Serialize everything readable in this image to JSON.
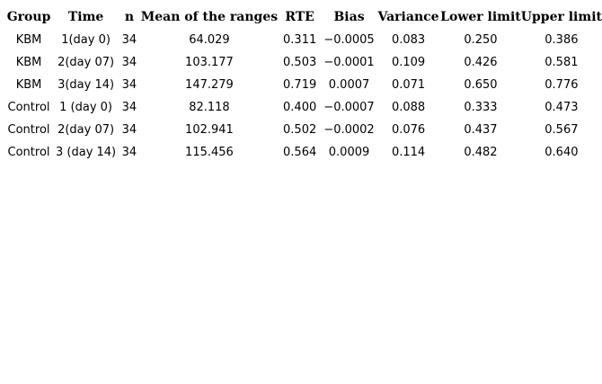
{
  "table": {
    "columns": [
      "Group",
      "Time",
      "n",
      "Mean of the ranges",
      "RTE",
      "Bias",
      "Variance",
      "Lower limit",
      "Upper limit"
    ],
    "rows": [
      [
        "KBM",
        "1(day 0)",
        "34",
        "64.029",
        "0.311",
        "−0.0005",
        "0.083",
        "0.250",
        "0.386"
      ],
      [
        "KBM",
        "2(day 07)",
        "34",
        "103.177",
        "0.503",
        "−0.0001",
        "0.109",
        "0.426",
        "0.581"
      ],
      [
        "KBM",
        "3(day 14)",
        "34",
        "147.279",
        "0.719",
        "0.0007",
        "0.071",
        "0.650",
        "0.776"
      ],
      [
        "Control",
        "1 (day 0)",
        "34",
        "82.118",
        "0.400",
        "−0.0007",
        "0.088",
        "0.333",
        "0.473"
      ],
      [
        "Control",
        "2(day 07)",
        "34",
        "102.941",
        "0.502",
        "−0.0002",
        "0.076",
        "0.437",
        "0.567"
      ],
      [
        "Control",
        "3 (day 14)",
        "34",
        "115.456",
        "0.564",
        "0.0009",
        "0.114",
        "0.482",
        "0.640"
      ]
    ],
    "colors": {
      "text": "#000000",
      "background": "#ffffff"
    }
  }
}
